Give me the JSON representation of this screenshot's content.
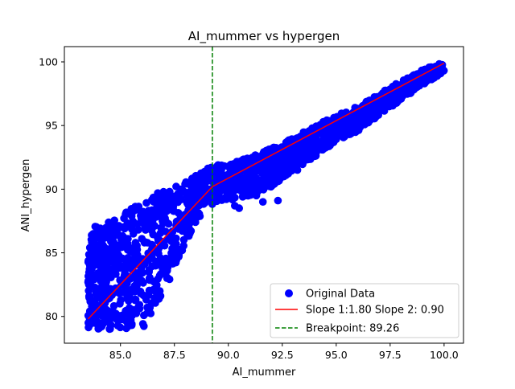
{
  "chart_data": {
    "type": "scatter",
    "title": "AI_mummer vs hypergen",
    "xlabel": "AI_mummer",
    "ylabel": "ANI_hypergen",
    "xlim": [
      82.4,
      100.9
    ],
    "ylim": [
      77.9,
      101.2
    ],
    "xticks": [
      85.0,
      87.5,
      90.0,
      92.5,
      95.0,
      97.5,
      100.0
    ],
    "xtick_labels": [
      "85.0",
      "87.5",
      "90.0",
      "92.5",
      "95.0",
      "97.5",
      "100.0"
    ],
    "yticks": [
      80,
      85,
      90,
      95,
      100
    ],
    "ytick_labels": [
      "80",
      "85",
      "90",
      "95",
      "100"
    ],
    "grid": false,
    "legend_position": "lower right",
    "series": [
      {
        "name": "Original Data",
        "kind": "scatter",
        "color": "#0000ff",
        "density_band": [
          [
            83.5,
            79.0,
            87.0
          ],
          [
            84.0,
            79.0,
            87.2
          ],
          [
            84.5,
            79.0,
            87.6
          ],
          [
            85.0,
            79.0,
            87.9
          ],
          [
            85.5,
            79.0,
            88.5
          ],
          [
            86.0,
            79.1,
            89.1
          ],
          [
            86.5,
            79.8,
            89.6
          ],
          [
            87.0,
            81.5,
            89.9
          ],
          [
            87.5,
            84.0,
            90.3
          ],
          [
            88.0,
            85.6,
            90.6
          ],
          [
            88.5,
            87.3,
            91.2
          ],
          [
            89.0,
            88.5,
            91.8
          ],
          [
            89.5,
            89.0,
            91.9
          ],
          [
            90.0,
            89.1,
            92.0
          ],
          [
            91.0,
            89.5,
            92.5
          ],
          [
            92.0,
            90.2,
            93.3
          ],
          [
            93.0,
            91.5,
            94.0
          ],
          [
            94.0,
            92.5,
            95.0
          ],
          [
            95.0,
            93.8,
            95.8
          ],
          [
            96.0,
            94.5,
            96.5
          ],
          [
            97.0,
            95.8,
            97.5
          ],
          [
            98.0,
            97.0,
            98.5
          ],
          [
            99.0,
            98.2,
            99.4
          ],
          [
            100.0,
            99.2,
            100.0
          ]
        ],
        "outliers": [
          [
            88.7,
            89.4
          ],
          [
            89.3,
            89.6
          ],
          [
            90.3,
            88.7
          ],
          [
            90.5,
            88.5
          ],
          [
            91.3,
            89.5
          ],
          [
            91.6,
            89.0
          ],
          [
            92.3,
            89.1
          ],
          [
            88.9,
            90.4
          ],
          [
            90.0,
            91.8
          ],
          [
            93.2,
            91.5
          ],
          [
            95.4,
            94.6
          ]
        ]
      },
      {
        "name": "Slope 1:1.80 Slope 2: 0.90",
        "kind": "line",
        "color": "#ff0000",
        "x": [
          83.5,
          89.26,
          100.0
        ],
        "y": [
          79.8,
          90.2,
          99.9
        ]
      },
      {
        "name": "Breakpoint: 89.26",
        "kind": "vline",
        "color": "#008000",
        "x": 89.26
      }
    ]
  }
}
